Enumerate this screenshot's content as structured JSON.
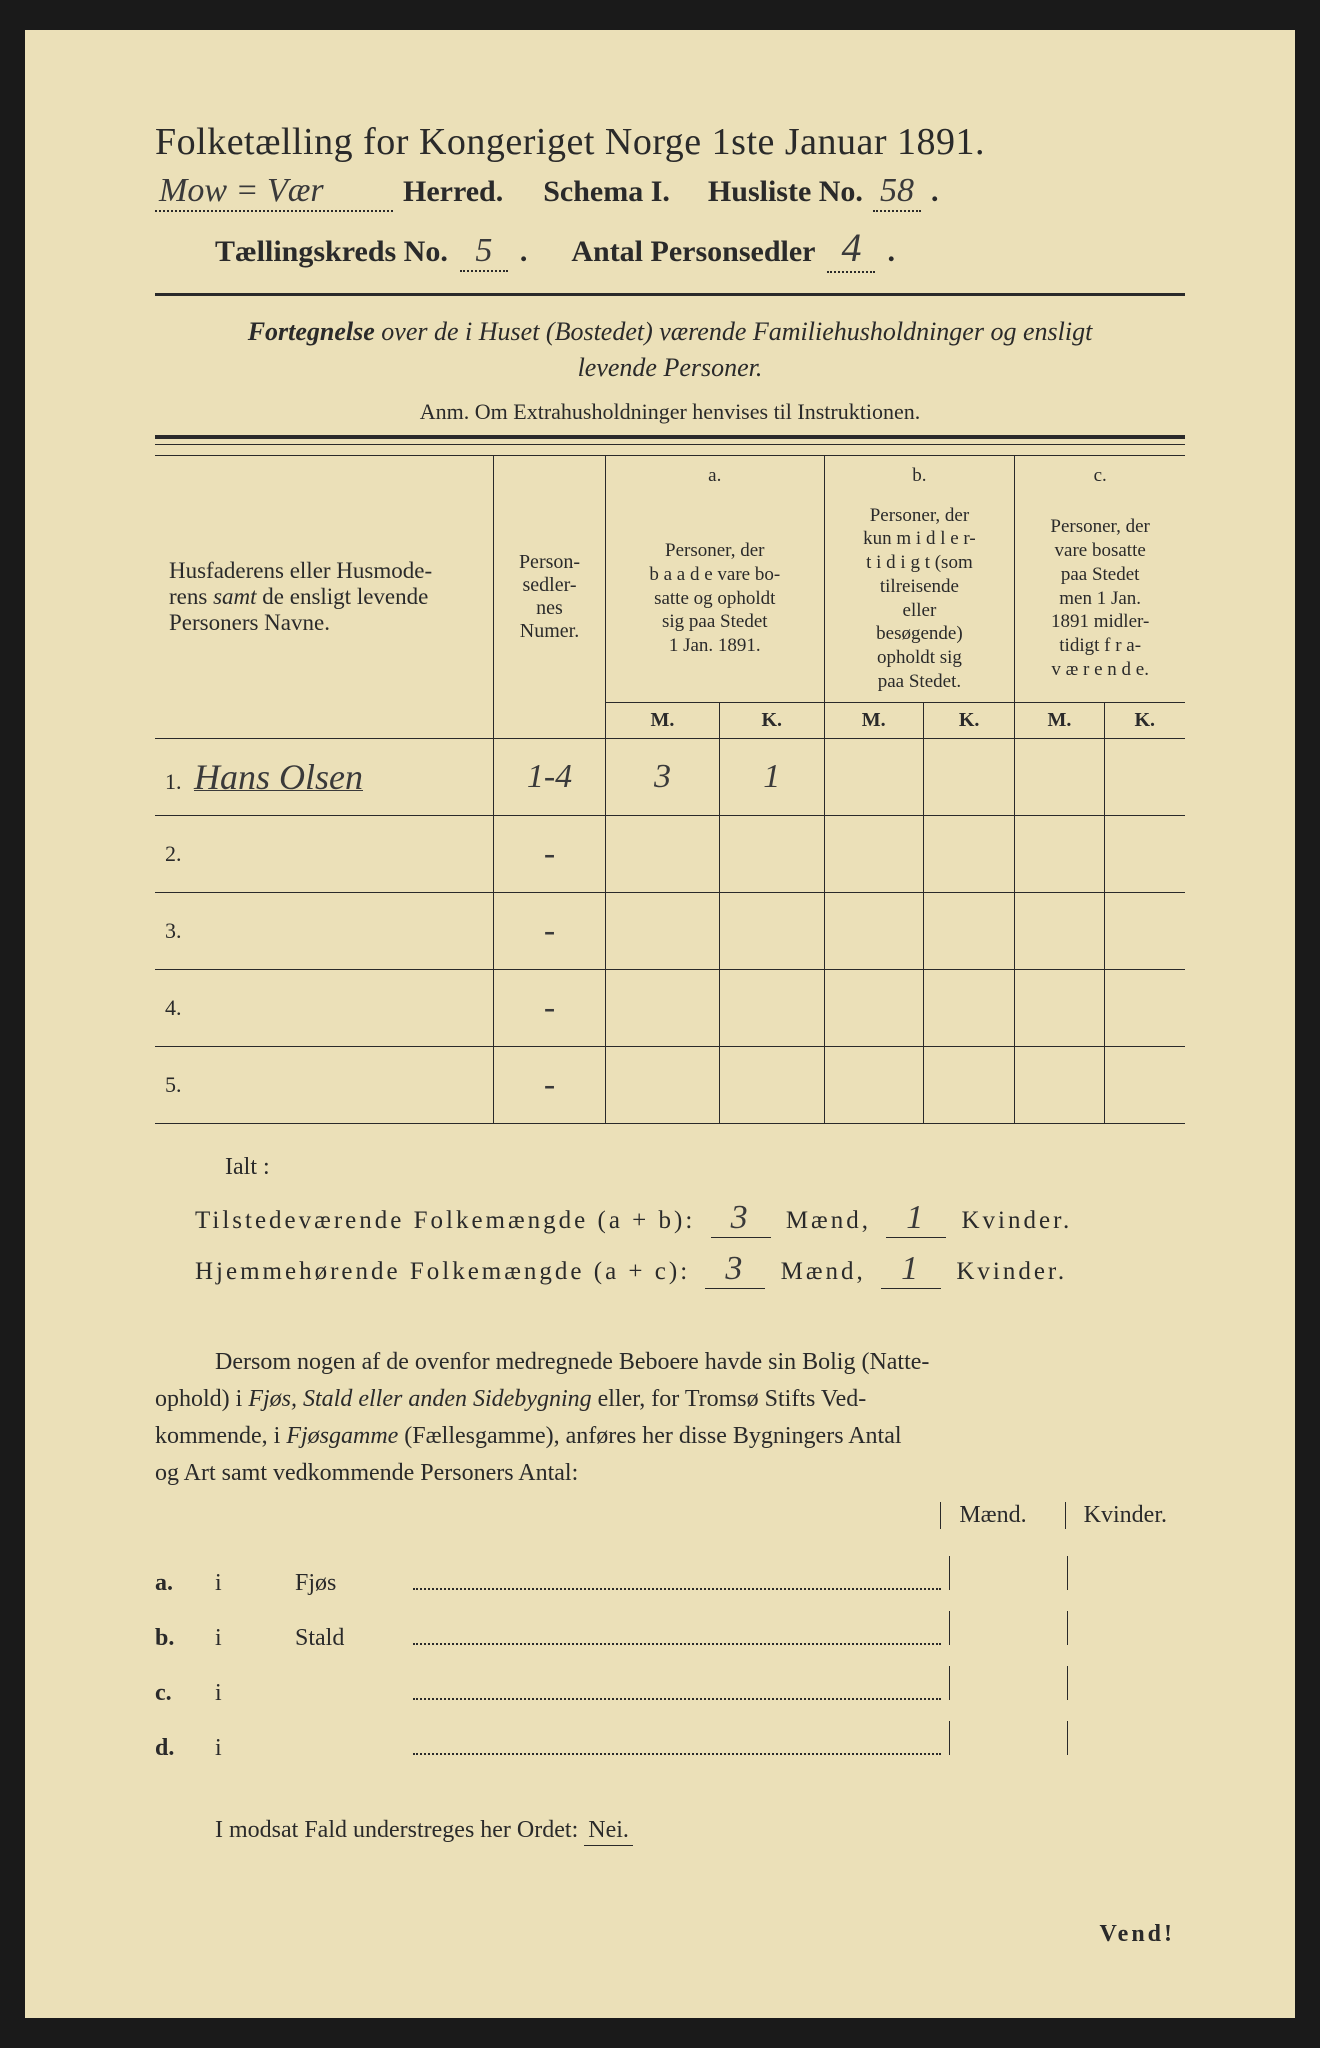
{
  "title": "Folketælling for Kongeriget Norge 1ste Januar 1891.",
  "header": {
    "herred_value": "Mow = Vær",
    "herred_label": "Herred.",
    "schema_label": "Schema I.",
    "husliste_label": "Husliste No.",
    "husliste_value": "58",
    "kreds_label": "Tællingskreds No.",
    "kreds_value": "5",
    "antal_label": "Antal Personsedler",
    "antal_value": "4"
  },
  "subtitle": "Fortegnelse over de i Huset (Bostedet) værende Familiehusholdninger og ensligt levende Personer.",
  "anm": "Anm.  Om Extrahusholdninger henvises til Instruktionen.",
  "table": {
    "col1": "Husfaderens eller Husmoderens samt de ensligt levende Personers Navne.",
    "col2": "Person-sedler-nes Numer.",
    "grp_a_letter": "a.",
    "grp_a": "Personer, der baade vare bosatte og opholdt sig paa Stedet 1 Jan. 1891.",
    "grp_b_letter": "b.",
    "grp_b": "Personer, der kun midlertidigt (som tilreisende eller besøgende) opholdt sig paa Stedet.",
    "grp_c_letter": "c.",
    "grp_c": "Personer, der vare bosatte paa Stedet men 1 Jan. 1891 midlertidigt fraværende.",
    "M": "M.",
    "K": "K.",
    "rows": [
      {
        "num": "1.",
        "name": "Hans Olsen",
        "sedler": "1-4",
        "aM": "3",
        "aK": "1",
        "bM": "",
        "bK": "",
        "cM": "",
        "cK": ""
      },
      {
        "num": "2.",
        "name": "",
        "sedler": "-",
        "aM": "",
        "aK": "",
        "bM": "",
        "bK": "",
        "cM": "",
        "cK": ""
      },
      {
        "num": "3.",
        "name": "",
        "sedler": "-",
        "aM": "",
        "aK": "",
        "bM": "",
        "bK": "",
        "cM": "",
        "cK": ""
      },
      {
        "num": "4.",
        "name": "",
        "sedler": "-",
        "aM": "",
        "aK": "",
        "bM": "",
        "bK": "",
        "cM": "",
        "cK": ""
      },
      {
        "num": "5.",
        "name": "",
        "sedler": "-",
        "aM": "",
        "aK": "",
        "bM": "",
        "bK": "",
        "cM": "",
        "cK": ""
      }
    ]
  },
  "ialt_label": "Ialt :",
  "totals": {
    "line1_label": "Tilstedeværende Folkemængde (a + b):",
    "line1_m": "3",
    "line1_k": "1",
    "line2_label": "Hjemmehørende Folkemængde (a + c):",
    "line2_m": "3",
    "line2_k": "1",
    "maend": "Mænd,",
    "kvinder": "Kvinder."
  },
  "para": "Dersom nogen af de ovenfor medregnede Beboere havde sin Bolig (Natteophold) i Fjøs, Stald eller anden Sidebygning eller, for Tromsø Stifts Vedkommende, i Fjøsgamme (Fællesgamme), anføres her disse Bygningers Antal og Art samt vedkommende Personers Antal:",
  "lower": {
    "maend": "Mænd.",
    "kvinder": "Kvinder.",
    "rows": [
      {
        "a": "a.",
        "i": "i",
        "thing": "Fjøs"
      },
      {
        "a": "b.",
        "i": "i",
        "thing": "Stald"
      },
      {
        "a": "c.",
        "i": "i",
        "thing": ""
      },
      {
        "a": "d.",
        "i": "i",
        "thing": ""
      }
    ]
  },
  "nei_line_prefix": "I modsat Fald understreges her Ordet:",
  "nei": "Nei.",
  "vend": "Vend!"
}
